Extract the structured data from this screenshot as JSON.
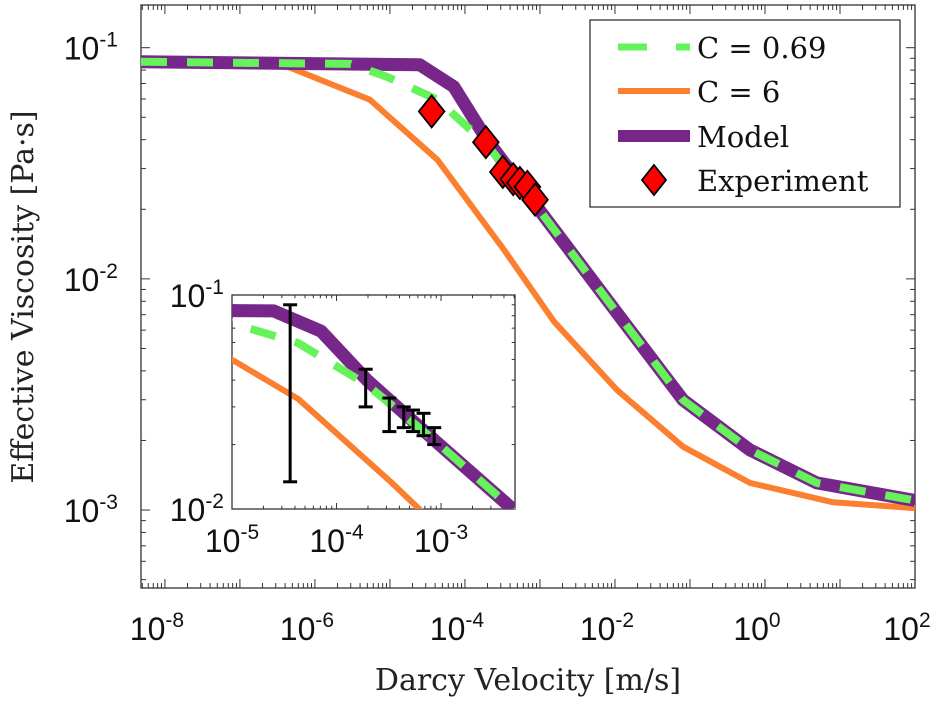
{
  "chart_data": {
    "type": "line",
    "xlabel": "Darcy Velocity [m/s]",
    "ylabel": "Effective Viscosity [Pa·s]",
    "xscale": "log",
    "yscale": "log",
    "xlim": [
      4.8e-09,
      100
    ],
    "ylim": [
      0.00046,
      0.153
    ],
    "xticks": [
      {
        "base": "10",
        "exp": "-8",
        "value": 1e-08
      },
      {
        "base": "10",
        "exp": "-6",
        "value": 1e-06
      },
      {
        "base": "10",
        "exp": "-4",
        "value": 0.0001
      },
      {
        "base": "10",
        "exp": "-2",
        "value": 0.01
      },
      {
        "base": "10",
        "exp": "0",
        "value": 1
      },
      {
        "base": "10",
        "exp": "2",
        "value": 100
      }
    ],
    "yticks": [
      {
        "base": "10",
        "exp": "-1",
        "value": 0.1
      },
      {
        "base": "10",
        "exp": "-2",
        "value": 0.01
      },
      {
        "base": "10",
        "exp": "-3",
        "value": 0.001
      }
    ],
    "grid": false,
    "legend_position": "top-right",
    "series": [
      {
        "name": "C = 0.69",
        "style": "dashed",
        "color": "#66f25a",
        "x": [
          4.8e-09,
          3e-06,
          9.1e-06,
          4.3e-05,
          0.000196,
          0.00091,
          0.0117,
          0.081,
          0.63,
          4.9,
          100
        ],
        "y": [
          0.0869,
          0.0851,
          0.0748,
          0.0596,
          0.038,
          0.0205,
          0.00684,
          0.00299,
          0.00182,
          0.00131,
          0.0011
        ]
      },
      {
        "name": "C = 6",
        "style": "solid",
        "color": "#fb7f2e",
        "x": [
          4.8e-09,
          4.3e-07,
          5.4e-06,
          4.3e-05,
          0.00033,
          0.00155,
          0.0107,
          0.081,
          0.63,
          8.1,
          100
        ],
        "y": [
          0.0869,
          0.0828,
          0.0596,
          0.0327,
          0.0134,
          0.00652,
          0.0033,
          0.00188,
          0.00131,
          0.00108,
          0.00102
        ]
      },
      {
        "name": "Model",
        "style": "thick",
        "color": "#77268a",
        "x": [
          4.8e-09,
          2.5e-05,
          7.1e-05,
          0.000196,
          0.00091,
          0.0117,
          0.081,
          0.63,
          4.9,
          100
        ],
        "y": [
          0.0869,
          0.0843,
          0.0678,
          0.04,
          0.0205,
          0.00684,
          0.00299,
          0.00182,
          0.00131,
          0.0011
        ]
      }
    ],
    "experiment": {
      "name": "Experiment",
      "marker": "diamond",
      "color": "#ff0000",
      "x": [
        3.6e-05,
        0.00019,
        0.00032,
        0.00044,
        0.00054,
        0.00068,
        0.00086
      ],
      "y": [
        0.053,
        0.039,
        0.029,
        0.027,
        0.026,
        0.025,
        0.022
      ],
      "y_low": [
        0.0134,
        0.03,
        0.023,
        0.024,
        0.023,
        0.022,
        0.02
      ],
      "y_high": [
        0.09,
        0.045,
        0.033,
        0.03,
        0.029,
        0.028,
        0.024
      ]
    },
    "inset": {
      "xlim": [
        1e-05,
        0.0051
      ],
      "ylim": [
        0.01,
        0.1
      ],
      "xticks": [
        {
          "base": "10",
          "exp": "-5",
          "value": 1e-05
        },
        {
          "base": "10",
          "exp": "-4",
          "value": 0.0001
        },
        {
          "base": "10",
          "exp": "-3",
          "value": 0.001
        }
      ],
      "yticks": [
        {
          "base": "10",
          "exp": "-1",
          "value": 0.1
        },
        {
          "base": "10",
          "exp": "-2",
          "value": 0.01
        }
      ],
      "error_bars": true
    }
  }
}
